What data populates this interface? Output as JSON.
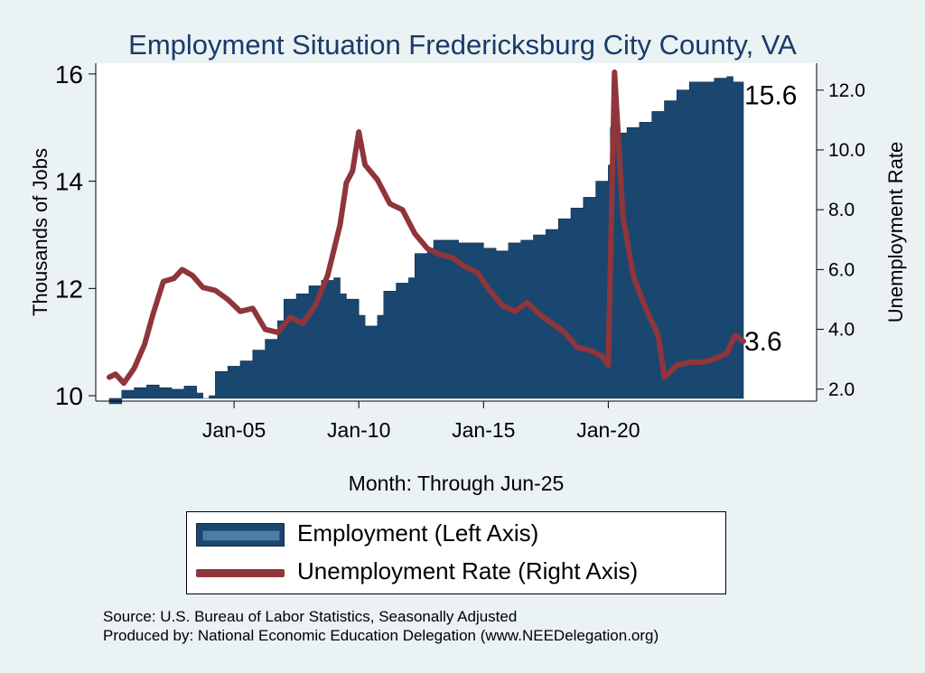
{
  "chart_data": {
    "type": "area",
    "title": "Employment Situation Fredericksburg City  County, VA",
    "xlabel": "Month: Through Jun-25",
    "ylabel_left": "Thousands of Jobs",
    "ylabel_right": "Unemployment Rate",
    "x_start": "Jan-00",
    "x_end": "Jun-25",
    "x_ticks": [
      "Jan-05",
      "Jan-10",
      "Jan-15",
      "Jan-20"
    ],
    "y_left_ticks": [
      "10",
      "12",
      "14",
      "16"
    ],
    "y_right_ticks": [
      "2.0",
      "4.0",
      "6.0",
      "8.0",
      "10.0",
      "12.0"
    ],
    "y_left_range": [
      9.9,
      16.2
    ],
    "y_right_range": [
      1.6,
      12.9
    ],
    "series": [
      {
        "name": "Employment (Left Axis)",
        "axis": "left",
        "color": "#1a476f",
        "points": [
          [
            "2000-01",
            9.85
          ],
          [
            "2000-07",
            10.1
          ],
          [
            "2001-01",
            10.15
          ],
          [
            "2001-07",
            10.2
          ],
          [
            "2002-01",
            10.15
          ],
          [
            "2002-07",
            10.12
          ],
          [
            "2003-01",
            10.18
          ],
          [
            "2003-07",
            10.05
          ],
          [
            "2003-10",
            9.95
          ],
          [
            "2004-01",
            10.0
          ],
          [
            "2004-04",
            10.45
          ],
          [
            "2004-10",
            10.55
          ],
          [
            "2005-04",
            10.65
          ],
          [
            "2005-10",
            10.85
          ],
          [
            "2006-04",
            11.05
          ],
          [
            "2006-10",
            11.4
          ],
          [
            "2007-01",
            11.8
          ],
          [
            "2007-07",
            11.9
          ],
          [
            "2008-01",
            12.05
          ],
          [
            "2008-07",
            12.15
          ],
          [
            "2009-01",
            12.2
          ],
          [
            "2009-04",
            11.9
          ],
          [
            "2009-07",
            11.8
          ],
          [
            "2010-01",
            11.5
          ],
          [
            "2010-04",
            11.3
          ],
          [
            "2010-10",
            11.5
          ],
          [
            "2011-01",
            11.95
          ],
          [
            "2011-07",
            12.1
          ],
          [
            "2012-01",
            12.2
          ],
          [
            "2012-04",
            12.65
          ],
          [
            "2012-10",
            12.75
          ],
          [
            "2013-01",
            12.9
          ],
          [
            "2013-07",
            12.9
          ],
          [
            "2014-01",
            12.85
          ],
          [
            "2014-07",
            12.85
          ],
          [
            "2015-01",
            12.75
          ],
          [
            "2015-07",
            12.7
          ],
          [
            "2016-01",
            12.85
          ],
          [
            "2016-07",
            12.9
          ],
          [
            "2017-01",
            13.0
          ],
          [
            "2017-07",
            13.1
          ],
          [
            "2018-01",
            13.3
          ],
          [
            "2018-07",
            13.5
          ],
          [
            "2019-01",
            13.7
          ],
          [
            "2019-07",
            14.0
          ],
          [
            "2020-01",
            14.3
          ],
          [
            "2020-02",
            15.0
          ],
          [
            "2020-04",
            14.9
          ],
          [
            "2020-10",
            15.0
          ],
          [
            "2021-04",
            15.1
          ],
          [
            "2021-10",
            15.3
          ],
          [
            "2022-04",
            15.5
          ],
          [
            "2022-10",
            15.7
          ],
          [
            "2023-04",
            15.85
          ],
          [
            "2023-10",
            15.85
          ],
          [
            "2024-04",
            15.92
          ],
          [
            "2024-10",
            15.95
          ],
          [
            "2025-01",
            15.85
          ],
          [
            "2025-06",
            15.6
          ]
        ]
      },
      {
        "name": "Unemployment Rate (Right Axis)",
        "axis": "right",
        "color": "#90353b",
        "points": [
          [
            "2000-01",
            2.4
          ],
          [
            "2000-04",
            2.5
          ],
          [
            "2000-08",
            2.2
          ],
          [
            "2001-01",
            2.7
          ],
          [
            "2001-06",
            3.5
          ],
          [
            "2001-10",
            4.5
          ],
          [
            "2002-03",
            5.6
          ],
          [
            "2002-08",
            5.7
          ],
          [
            "2002-12",
            6.0
          ],
          [
            "2003-05",
            5.8
          ],
          [
            "2003-10",
            5.4
          ],
          [
            "2004-04",
            5.3
          ],
          [
            "2004-10",
            5.0
          ],
          [
            "2005-04",
            4.6
          ],
          [
            "2005-10",
            4.7
          ],
          [
            "2006-04",
            4.0
          ],
          [
            "2006-10",
            3.9
          ],
          [
            "2007-04",
            4.4
          ],
          [
            "2007-10",
            4.2
          ],
          [
            "2008-04",
            4.8
          ],
          [
            "2008-10",
            5.8
          ],
          [
            "2009-04",
            7.5
          ],
          [
            "2009-07",
            8.9
          ],
          [
            "2009-10",
            9.3
          ],
          [
            "2010-01",
            10.6
          ],
          [
            "2010-04",
            9.5
          ],
          [
            "2010-10",
            9.0
          ],
          [
            "2011-04",
            8.2
          ],
          [
            "2011-10",
            8.0
          ],
          [
            "2012-04",
            7.2
          ],
          [
            "2012-10",
            6.7
          ],
          [
            "2013-04",
            6.5
          ],
          [
            "2013-10",
            6.4
          ],
          [
            "2014-04",
            6.1
          ],
          [
            "2014-10",
            5.9
          ],
          [
            "2015-04",
            5.3
          ],
          [
            "2015-10",
            4.8
          ],
          [
            "2016-04",
            4.6
          ],
          [
            "2016-10",
            4.9
          ],
          [
            "2017-04",
            4.5
          ],
          [
            "2017-10",
            4.2
          ],
          [
            "2018-04",
            3.9
          ],
          [
            "2018-10",
            3.4
          ],
          [
            "2019-04",
            3.3
          ],
          [
            "2019-10",
            3.1
          ],
          [
            "2020-01",
            2.8
          ],
          [
            "2020-04",
            12.6
          ],
          [
            "2020-08",
            7.8
          ],
          [
            "2021-01",
            5.8
          ],
          [
            "2021-07",
            4.7
          ],
          [
            "2022-01",
            3.8
          ],
          [
            "2022-04",
            2.4
          ],
          [
            "2022-10",
            2.8
          ],
          [
            "2023-04",
            2.9
          ],
          [
            "2023-10",
            2.9
          ],
          [
            "2024-04",
            3.0
          ],
          [
            "2024-10",
            3.2
          ],
          [
            "2025-02",
            3.8
          ],
          [
            "2025-06",
            3.6
          ]
        ]
      }
    ],
    "end_labels": {
      "employment": "15.6",
      "unemployment": "3.6"
    },
    "legend_position": "bottom"
  },
  "legend": {
    "employment_label": "Employment (Left Axis)",
    "unemployment_label": "Unemployment Rate (Right Axis)"
  },
  "footer": {
    "source": "Source: U.S. Bureau of Labor Statistics, Seasonally Adjusted",
    "produced_by": "Produced by: National Economic Education Delegation (www.NEEDelegation.org)"
  }
}
